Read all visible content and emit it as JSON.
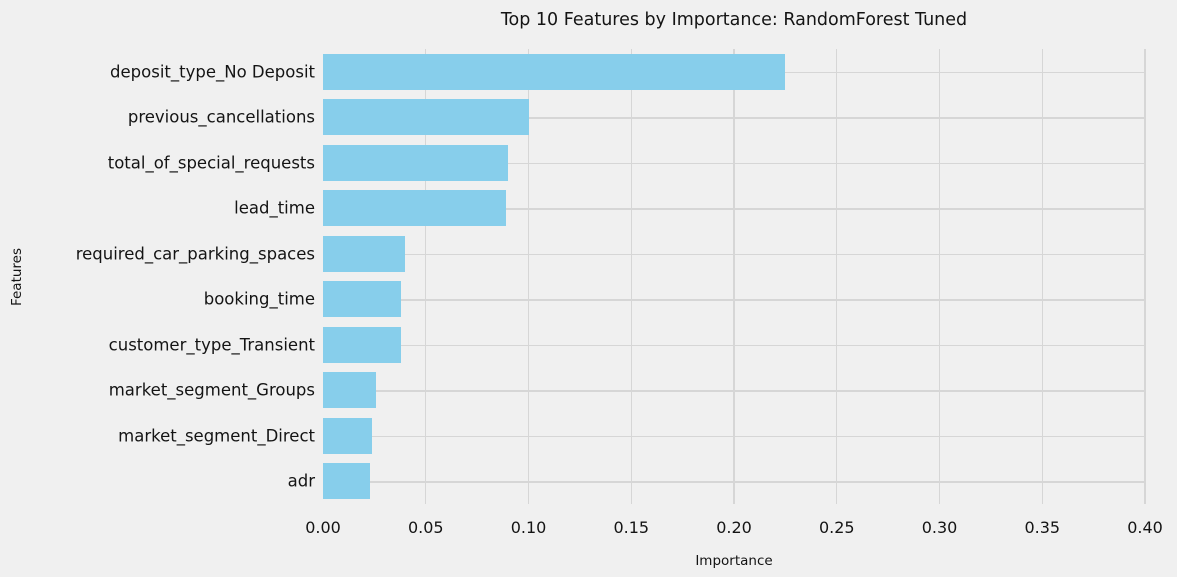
{
  "chart_data": {
    "type": "bar",
    "orientation": "horizontal",
    "title": "Top 10 Features by Importance: RandomForest Tuned",
    "xlabel": "Importance",
    "ylabel": "Features",
    "categories": [
      "deposit_type_No Deposit",
      "previous_cancellations",
      "total_of_special_requests",
      "lead_time",
      "required_car_parking_spaces",
      "booking_time",
      "customer_type_Transient",
      "market_segment_Groups",
      "market_segment_Direct",
      "adr"
    ],
    "values": [
      0.225,
      0.1,
      0.09,
      0.089,
      0.04,
      0.038,
      0.038,
      0.026,
      0.024,
      0.023
    ],
    "xlim": [
      0,
      0.4
    ],
    "xticks": [
      "0.00",
      "0.05",
      "0.10",
      "0.15",
      "0.20",
      "0.25",
      "0.30",
      "0.35",
      "0.40"
    ],
    "grid": true,
    "legend": null,
    "colors": {
      "bar": "#87CEEB",
      "background": "#F0F0F0",
      "grid": "#D6D6D6",
      "text": "#141414"
    }
  }
}
